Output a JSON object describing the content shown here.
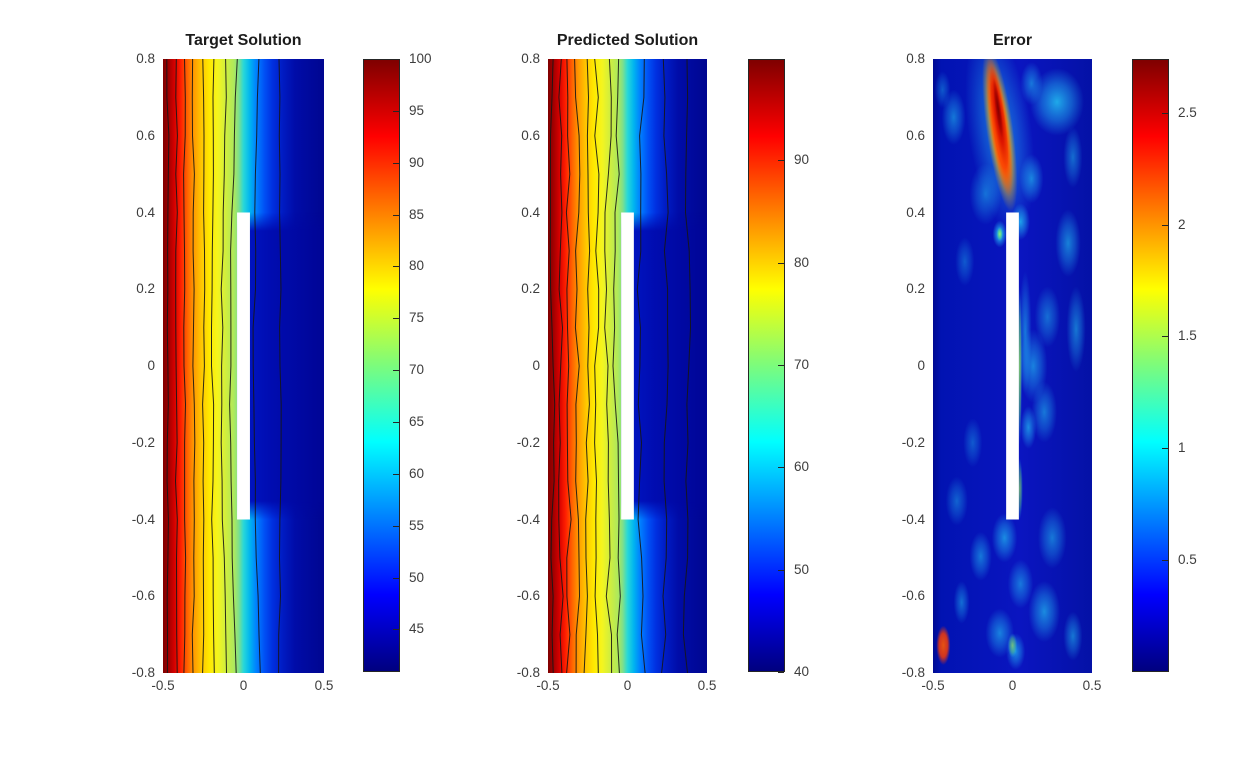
{
  "figure": {
    "background": "#ffffff"
  },
  "chart_data": [
    {
      "type": "heatmap",
      "title": "Target Solution",
      "xlabel": "",
      "ylabel": "",
      "xlim": [
        -0.5,
        0.5
      ],
      "ylim": [
        -0.8,
        0.8
      ],
      "xticks": [
        "-0.5",
        "0",
        "0.5"
      ],
      "yticks": [
        "0.8",
        "0.6",
        "0.4",
        "0.2",
        "0",
        "-0.2",
        "-0.4",
        "-0.6",
        "-0.8"
      ],
      "colormap": "jet",
      "colorbar": {
        "min": 40.9,
        "max": 100,
        "ticks": [
          "100",
          "95",
          "90",
          "85",
          "80",
          "75",
          "70",
          "65",
          "60",
          "55",
          "50",
          "45"
        ]
      },
      "obstacle": {
        "x_range": [
          -0.04,
          0.04
        ],
        "y_range": [
          -0.4,
          0.4
        ],
        "color": "#ffffff"
      },
      "field_summary": "Steady field: 100 (dark red) at left wall decaying rightward through orange/yellow/green; dark blue (~41) right of the insulating slab; contour lines bend around slab tips",
      "contours": {
        "fractions": [
          0.03,
          0.082,
          0.132,
          0.186,
          0.245,
          0.312,
          0.392,
          0.455,
          0.6,
          0.72
        ],
        "bows": [
          0.0,
          0.002,
          0.004,
          0.006,
          0.008,
          -0.004,
          -0.028,
          -0.038,
          -0.035,
          0.01
        ],
        "jitter": 1.1,
        "seed": 7
      }
    },
    {
      "type": "heatmap",
      "title": "Predicted Solution",
      "xlabel": "",
      "ylabel": "",
      "xlim": [
        -0.5,
        0.5
      ],
      "ylim": [
        -0.8,
        0.8
      ],
      "xticks": [
        "-0.5",
        "0",
        "0.5"
      ],
      "yticks": [
        "0.8",
        "0.6",
        "0.4",
        "0.2",
        "0",
        "-0.2",
        "-0.4",
        "-0.6",
        "-0.8"
      ],
      "colormap": "jet",
      "colorbar": {
        "min": 40,
        "max": 99.9,
        "ticks": [
          "90",
          "80",
          "70",
          "60",
          "50",
          "40"
        ]
      },
      "obstacle": {
        "x_range": [
          -0.04,
          0.04
        ],
        "y_range": [
          -0.4,
          0.4
        ],
        "color": "#ffffff"
      },
      "field_summary": "Network prediction of same field; same left-to-right decay but contour lines are wigglier, with extra closed contours right of the slab near top and bottom",
      "contours": {
        "fractions": [
          0.03,
          0.08,
          0.128,
          0.18,
          0.24,
          0.308,
          0.392,
          0.458,
          0.6,
          0.73,
          0.862
        ],
        "bows": [
          0.0,
          0.003,
          0.005,
          0.007,
          0.009,
          -0.003,
          -0.026,
          -0.036,
          -0.03,
          0.015,
          0.02
        ],
        "jitter": 2.6,
        "seed": 13
      }
    },
    {
      "type": "heatmap",
      "title": "Error",
      "xlabel": "",
      "ylabel": "",
      "xlim": [
        -0.5,
        0.5
      ],
      "ylim": [
        -0.8,
        0.8
      ],
      "xticks": [
        "-0.5",
        "0",
        "0.5"
      ],
      "yticks": [
        "0.8",
        "0.6",
        "0.4",
        "0.2",
        "0",
        "-0.2",
        "-0.4",
        "-0.6",
        "-0.8"
      ],
      "colormap": "jet",
      "colorbar": {
        "min": 0,
        "max": 2.74,
        "ticks": [
          "2.5",
          "2",
          "1.5",
          "1",
          "0.5"
        ]
      },
      "obstacle": {
        "x_range": [
          -0.04,
          0.04
        ],
        "y_range": [
          -0.4,
          0.4
        ],
        "color": "#ffffff"
      },
      "field_summary": "Absolute error: mostly near 0 (dark blue) with scattered cyan patches; peak error ~2.7 in a red/orange flame-shaped region near x=-0.06, y=0.55..0.8; greenish sliver along right edge of slab",
      "flame": {
        "cx": 0.42,
        "cy": 0.115,
        "rot": -8
      },
      "blobs": [
        {
          "x": 0.78,
          "y": 0.07,
          "rx": 0.17,
          "ry": 0.055,
          "o": 0.75
        },
        {
          "x": 0.62,
          "y": 0.04,
          "rx": 0.07,
          "ry": 0.035,
          "o": 0.5
        },
        {
          "x": 0.13,
          "y": 0.095,
          "rx": 0.075,
          "ry": 0.045,
          "o": 0.5
        },
        {
          "x": 0.06,
          "y": 0.05,
          "rx": 0.05,
          "ry": 0.03,
          "o": 0.35
        },
        {
          "x": 0.33,
          "y": 0.22,
          "rx": 0.1,
          "ry": 0.05,
          "o": 0.45
        },
        {
          "x": 0.62,
          "y": 0.195,
          "rx": 0.075,
          "ry": 0.04,
          "o": 0.55
        },
        {
          "x": 0.88,
          "y": 0.16,
          "rx": 0.06,
          "ry": 0.05,
          "o": 0.45
        },
        {
          "x": 0.55,
          "y": 0.265,
          "rx": 0.06,
          "ry": 0.03,
          "o": 0.7
        },
        {
          "x": 0.42,
          "y": 0.285,
          "rx": 0.045,
          "ry": 0.022,
          "o": 0.9
        },
        {
          "x": 0.85,
          "y": 0.3,
          "rx": 0.08,
          "ry": 0.055,
          "o": 0.55
        },
        {
          "x": 0.2,
          "y": 0.33,
          "rx": 0.06,
          "ry": 0.04,
          "o": 0.35
        },
        {
          "x": 0.9,
          "y": 0.44,
          "rx": 0.06,
          "ry": 0.07,
          "o": 0.5
        },
        {
          "x": 0.72,
          "y": 0.42,
          "rx": 0.08,
          "ry": 0.05,
          "o": 0.45
        },
        {
          "x": 0.63,
          "y": 0.5,
          "rx": 0.09,
          "ry": 0.06,
          "o": 0.55
        },
        {
          "x": 0.58,
          "y": 0.445,
          "rx": 0.04,
          "ry": 0.1,
          "o": 0.5
        },
        {
          "x": 0.7,
          "y": 0.575,
          "rx": 0.08,
          "ry": 0.05,
          "o": 0.5
        },
        {
          "x": 0.6,
          "y": 0.6,
          "rx": 0.05,
          "ry": 0.035,
          "o": 0.6
        },
        {
          "x": 0.25,
          "y": 0.625,
          "rx": 0.06,
          "ry": 0.04,
          "o": 0.35
        },
        {
          "x": 0.15,
          "y": 0.72,
          "rx": 0.07,
          "ry": 0.04,
          "o": 0.4
        },
        {
          "x": 0.45,
          "y": 0.78,
          "rx": 0.08,
          "ry": 0.04,
          "o": 0.6
        },
        {
          "x": 0.3,
          "y": 0.81,
          "rx": 0.07,
          "ry": 0.04,
          "o": 0.5
        },
        {
          "x": 0.75,
          "y": 0.78,
          "rx": 0.09,
          "ry": 0.05,
          "o": 0.5
        },
        {
          "x": 0.55,
          "y": 0.855,
          "rx": 0.08,
          "ry": 0.04,
          "o": 0.5
        },
        {
          "x": 0.18,
          "y": 0.885,
          "rx": 0.05,
          "ry": 0.035,
          "o": 0.45
        },
        {
          "x": 0.7,
          "y": 0.9,
          "rx": 0.1,
          "ry": 0.05,
          "o": 0.6
        },
        {
          "x": 0.42,
          "y": 0.935,
          "rx": 0.09,
          "ry": 0.04,
          "o": 0.55
        },
        {
          "x": 0.88,
          "y": 0.94,
          "rx": 0.06,
          "ry": 0.04,
          "o": 0.5
        },
        {
          "x": 0.52,
          "y": 0.965,
          "rx": 0.06,
          "ry": 0.03,
          "o": 0.6
        }
      ],
      "greens": [
        {
          "x": 0.545,
          "y": 0.5,
          "rx": 0.015,
          "ry": 0.13,
          "o": 0.85
        },
        {
          "x": 0.545,
          "y": 0.7,
          "rx": 0.02,
          "ry": 0.05,
          "o": 0.7
        },
        {
          "x": 0.42,
          "y": 0.285,
          "rx": 0.02,
          "ry": 0.012,
          "o": 0.9
        },
        {
          "x": 0.5,
          "y": 0.955,
          "rx": 0.03,
          "ry": 0.02,
          "o": 0.7
        }
      ],
      "orange_dots": [
        {
          "x": 0.065,
          "y": 0.955,
          "rx": 0.022,
          "ry": 0.016,
          "o": 0.9
        }
      ]
    }
  ]
}
